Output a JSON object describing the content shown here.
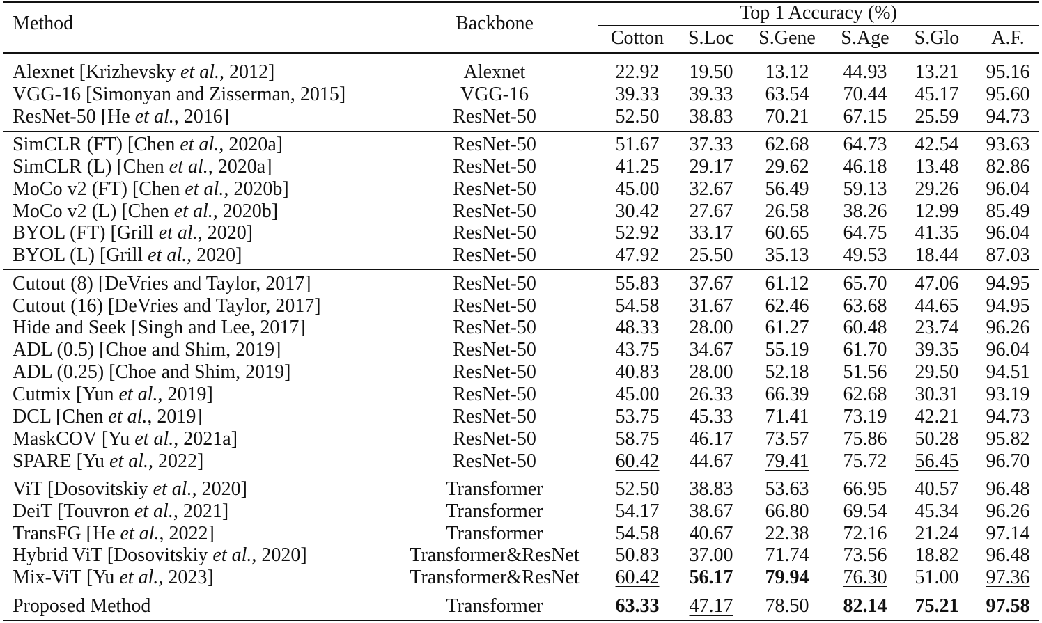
{
  "table": {
    "header": {
      "method": "Method",
      "backbone": "Backbone",
      "group": "Top 1 Accuracy (%)",
      "columns": [
        "Cotton",
        "S.Loc",
        "S.Gene",
        "S.Age",
        "S.Glo",
        "A.F."
      ]
    },
    "groups": [
      [
        {
          "method": {
            "pre": "Alexnet [Krizhevsky ",
            "em": "et al.",
            "post": ", 2012]"
          },
          "backbone": "Alexnet",
          "scores": [
            "22.92",
            "19.50",
            "13.12",
            "44.93",
            "13.21",
            "95.16"
          ]
        },
        {
          "method": "VGG-16 [Simonyan and Zisserman, 2015]",
          "backbone": "VGG-16",
          "scores": [
            "39.33",
            "39.33",
            "63.54",
            "70.44",
            "45.17",
            "95.60"
          ]
        },
        {
          "method": {
            "pre": "ResNet-50 [He ",
            "em": "et al.",
            "post": ", 2016]"
          },
          "backbone": "ResNet-50",
          "scores": [
            "52.50",
            "38.83",
            "70.21",
            "67.15",
            "25.59",
            "94.73"
          ]
        }
      ],
      [
        {
          "method": {
            "pre": "SimCLR (FT) [Chen ",
            "em": "et al.",
            "post": ", 2020a]"
          },
          "backbone": "ResNet-50",
          "scores": [
            "51.67",
            "37.33",
            "62.68",
            "64.73",
            "42.54",
            "93.63"
          ]
        },
        {
          "method": {
            "pre": "SimCLR (L) [Chen ",
            "em": "et al.",
            "post": ", 2020a]"
          },
          "backbone": "ResNet-50",
          "scores": [
            "41.25",
            "29.17",
            "29.62",
            "46.18",
            "13.48",
            "82.86"
          ]
        },
        {
          "method": {
            "pre": "MoCo v2 (FT) [Chen ",
            "em": "et al.",
            "post": ", 2020b]"
          },
          "backbone": "ResNet-50",
          "scores": [
            "45.00",
            "32.67",
            "56.49",
            "59.13",
            "29.26",
            "96.04"
          ]
        },
        {
          "method": {
            "pre": "MoCo v2 (L) [Chen ",
            "em": "et al.",
            "post": ", 2020b]"
          },
          "backbone": "ResNet-50",
          "scores": [
            "30.42",
            "27.67",
            "26.58",
            "38.26",
            "12.99",
            "85.49"
          ]
        },
        {
          "method": {
            "pre": "BYOL (FT) [Grill ",
            "em": "et al.",
            "post": ", 2020]"
          },
          "backbone": "ResNet-50",
          "scores": [
            "52.92",
            "33.17",
            "60.65",
            "64.75",
            "41.35",
            "96.04"
          ]
        },
        {
          "method": {
            "pre": "BYOL (L) [Grill ",
            "em": "et al.",
            "post": ", 2020]"
          },
          "backbone": "ResNet-50",
          "scores": [
            "47.92",
            "25.50",
            "35.13",
            "49.53",
            "18.44",
            "87.03"
          ]
        }
      ],
      [
        {
          "method": "Cutout (8) [DeVries and Taylor, 2017]",
          "backbone": "ResNet-50",
          "scores": [
            "55.83",
            "37.67",
            "61.12",
            "65.70",
            "47.06",
            "94.95"
          ]
        },
        {
          "method": "Cutout (16) [DeVries and Taylor, 2017]",
          "backbone": "ResNet-50",
          "scores": [
            "54.58",
            "31.67",
            "62.46",
            "63.68",
            "44.65",
            "94.95"
          ]
        },
        {
          "method": "Hide and Seek [Singh and Lee, 2017]",
          "backbone": "ResNet-50",
          "scores": [
            "48.33",
            "28.00",
            "61.27",
            "60.48",
            "23.74",
            "96.26"
          ]
        },
        {
          "method": "ADL (0.5) [Choe and Shim, 2019]",
          "backbone": "ResNet-50",
          "scores": [
            "43.75",
            "34.67",
            "55.19",
            "61.70",
            "39.35",
            "96.04"
          ]
        },
        {
          "method": "ADL (0.25) [Choe and Shim, 2019]",
          "backbone": "ResNet-50",
          "scores": [
            "40.83",
            "28.00",
            "52.18",
            "51.56",
            "29.50",
            "94.51"
          ]
        },
        {
          "method": {
            "pre": "Cutmix [Yun ",
            "em": "et al.",
            "post": ", 2019]"
          },
          "backbone": "ResNet-50",
          "scores": [
            "45.00",
            "26.33",
            "66.39",
            "62.68",
            "30.31",
            "93.19"
          ]
        },
        {
          "method": {
            "pre": "DCL [Chen ",
            "em": "et al.",
            "post": ", 2019]"
          },
          "backbone": "ResNet-50",
          "scores": [
            "53.75",
            "45.33",
            "71.41",
            "73.19",
            "42.21",
            "94.73"
          ]
        },
        {
          "method": {
            "pre": "MaskCOV [Yu ",
            "em": "et al.",
            "post": ", 2021a]"
          },
          "backbone": "ResNet-50",
          "scores": [
            "58.75",
            "46.17",
            "73.57",
            "75.86",
            "50.28",
            "95.82"
          ]
        },
        {
          "method": {
            "pre": "SPARE [Yu ",
            "em": "et al.",
            "post": ", 2022]"
          },
          "backbone": "ResNet-50",
          "scores": [
            "60.42",
            "44.67",
            "79.41",
            "75.72",
            "56.45",
            "96.70"
          ],
          "underline": [
            0,
            2,
            4
          ]
        }
      ],
      [
        {
          "method": {
            "pre": "ViT [Dosovitskiy ",
            "em": "et al.",
            "post": ", 2020]"
          },
          "backbone": "Transformer",
          "scores": [
            "52.50",
            "38.83",
            "53.63",
            "66.95",
            "40.57",
            "96.48"
          ]
        },
        {
          "method": {
            "pre": "DeiT [Touvron ",
            "em": "et al.",
            "post": ", 2021]"
          },
          "backbone": "Transformer",
          "scores": [
            "54.17",
            "38.67",
            "66.80",
            "69.54",
            "45.34",
            "96.26"
          ]
        },
        {
          "method": {
            "pre": "TransFG [He ",
            "em": "et al.",
            "post": ", 2022]"
          },
          "backbone": "Transformer",
          "scores": [
            "54.58",
            "40.67",
            "22.38",
            "72.16",
            "21.24",
            "97.14"
          ]
        },
        {
          "method": {
            "pre": "Hybrid ViT [Dosovitskiy ",
            "em": "et al.",
            "post": ", 2020]"
          },
          "backbone": "Transformer&ResNet",
          "scores": [
            "50.83",
            "37.00",
            "71.74",
            "73.56",
            "18.82",
            "96.48"
          ]
        },
        {
          "method": {
            "pre": "Mix-ViT [Yu ",
            "em": "et al.",
            "post": ", 2023]"
          },
          "backbone": "Transformer&ResNet",
          "scores": [
            "60.42",
            "56.17",
            "79.94",
            "76.30",
            "51.00",
            "97.36"
          ],
          "bold": [
            1,
            2
          ],
          "underline": [
            0,
            3,
            5
          ]
        }
      ],
      [
        {
          "method": "Proposed Method",
          "backbone": "Transformer",
          "scores": [
            "63.33",
            "47.17",
            "78.50",
            "82.14",
            "75.21",
            "97.58"
          ],
          "bold": [
            0,
            3,
            4,
            5
          ],
          "underline": [
            1
          ]
        }
      ]
    ]
  }
}
